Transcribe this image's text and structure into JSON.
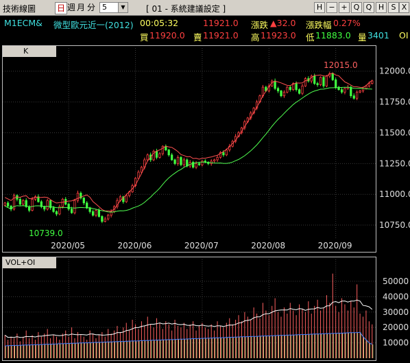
{
  "toolbar": {
    "title": "技術線圖",
    "periods": {
      "day": "日",
      "week": "週",
      "month": "月",
      "minute": "分"
    },
    "interval_value": "5",
    "setting_label": "[ 01 - 系統建議設定 ]",
    "buttons": [
      "H",
      "−",
      "+",
      "Q",
      "Q",
      "H",
      "S",
      "X"
    ],
    "colors": {
      "background": "#d4d0c8",
      "active": "#c00000"
    }
  },
  "quote": {
    "symbol": "M1ECM&",
    "name": "微型歐元近一(2012)",
    "time": "00:05:32",
    "last": "11921.0",
    "change_label": "漲跌",
    "change": "▲32.0",
    "change_pct_label": "漲跌幅",
    "change_pct": "0.27%",
    "bid_label": "買",
    "bid": "11920.0",
    "ask_label": "賣",
    "ask": "11921.0",
    "high_label": "高",
    "high": "11923.0",
    "low_label": "低",
    "low": "11883.0",
    "volume_label": "量",
    "volume": "3401",
    "oi_label": "OI",
    "colors": {
      "up": "#ff4040",
      "down": "#40ff40",
      "symbol": "#40e0e0",
      "label": "#ffff60"
    }
  },
  "panels": {
    "price": "K",
    "volume": "VOL+OI"
  },
  "chart_data": [
    {
      "type": "candlestick",
      "title": "",
      "x_ticks": [
        "2020/05",
        "2020/06",
        "2020/07",
        "2020/08",
        "2020/09"
      ],
      "y_ticks": [
        "12000.0",
        "11750.0",
        "11500.0",
        "11250.0",
        "11000.0",
        "10750.0"
      ],
      "ylim": [
        10650,
        12110
      ],
      "annotations": {
        "high": "12015.0",
        "low": "10739.0"
      },
      "ma_short_color": "#ff5050",
      "ma_long_color": "#50ff50",
      "up_color": "#ff4040",
      "down_color": "#40ff40",
      "close": [
        10930,
        10905,
        10880,
        10990,
        10960,
        10920,
        10950,
        10900,
        10870,
        10960,
        10980,
        10940,
        10900,
        10880,
        10950,
        10890,
        10860,
        10840,
        10900,
        10960,
        10920,
        10880,
        10850,
        10950,
        11010,
        10970,
        10930,
        10890,
        10860,
        10830,
        10870,
        10820,
        10780,
        10800,
        10830,
        10860,
        10900,
        10950,
        10980,
        10940,
        10990,
        11020,
        11070,
        11130,
        11180,
        11220,
        11280,
        11320,
        11280,
        11350,
        11300,
        11330,
        11390,
        11360,
        11320,
        11280,
        11250,
        11300,
        11240,
        11280,
        11230,
        11260,
        11220,
        11250,
        11240,
        11270,
        11260,
        11250,
        11270,
        11280,
        11300,
        11340,
        11320,
        11360,
        11390,
        11430,
        11470,
        11500,
        11540,
        11590,
        11620,
        11660,
        11700,
        11750,
        11800,
        11870,
        11840,
        11880,
        11920,
        11860,
        11840,
        11800,
        11830,
        11870,
        11850,
        11900,
        11850,
        11820,
        11880,
        11940,
        11920,
        11960,
        11900,
        11890,
        11950,
        11880,
        11960,
        11980,
        11930,
        11870,
        11850,
        11830,
        11860,
        11870,
        11800,
        11780,
        11830,
        11840,
        11860,
        11880,
        11900,
        11921
      ]
    },
    {
      "type": "bar",
      "title": "",
      "y_ticks": [
        "50000",
        "40000",
        "30000",
        "20000",
        "10000"
      ],
      "ylim": [
        0,
        58000
      ],
      "volume_color": "#ff6060",
      "oi_color": "#c8d080",
      "oi_line_color": "#4080ff",
      "volume_line_color": "#ffffff",
      "volume": [
        15000,
        12000,
        14000,
        13000,
        16000,
        11000,
        14000,
        18000,
        13000,
        15000,
        12000,
        17000,
        14000,
        16000,
        19000,
        13000,
        15000,
        14000,
        12000,
        16000,
        18000,
        14000,
        20000,
        13000,
        17000,
        15000,
        14000,
        12000,
        18000,
        16000,
        13000,
        15000,
        17000,
        14000,
        19000,
        16000,
        18000,
        21000,
        17000,
        20000,
        23000,
        18000,
        25000,
        22000,
        19000,
        24000,
        21000,
        27000,
        22000,
        20000,
        26000,
        23000,
        19000,
        24000,
        22000,
        18000,
        25000,
        21000,
        20000,
        23000,
        19000,
        22000,
        24000,
        18000,
        21000,
        23000,
        20000,
        19000,
        22000,
        18000,
        24000,
        21000,
        20000,
        23000,
        26000,
        22000,
        25000,
        28000,
        24000,
        30000,
        27000,
        25000,
        33000,
        29000,
        26000,
        36000,
        31000,
        28000,
        34000,
        39000,
        30000,
        27000,
        33000,
        29000,
        36000,
        31000,
        28000,
        35000,
        32000,
        30000,
        37000,
        29000,
        34000,
        38000,
        31000,
        33000,
        41000,
        36000,
        55000,
        34000,
        30000,
        39000,
        35000,
        31000,
        37000,
        33000,
        48000,
        29000,
        27000,
        31000,
        24000,
        22000
      ],
      "oi": [
        8000,
        8100,
        8200,
        8300,
        8300,
        8400,
        8500,
        8600,
        8600,
        8700,
        8800,
        8800,
        8900,
        9000,
        9100,
        9100,
        9200,
        9300,
        9400,
        9400,
        9500,
        9600,
        9700,
        9700,
        9800,
        9900,
        10000,
        10000,
        10100,
        10200,
        10300,
        10300,
        10400,
        10500,
        10600,
        10600,
        10700,
        10800,
        10900,
        10900,
        11000,
        11100,
        11200,
        11200,
        11300,
        11400,
        11500,
        11500,
        11600,
        11700,
        11800,
        11800,
        11900,
        12000,
        12100,
        12100,
        12200,
        12300,
        12400,
        12400,
        12500,
        12600,
        12700,
        12700,
        12800,
        12900,
        13000,
        13000,
        13100,
        13200,
        13300,
        13300,
        13400,
        13500,
        13600,
        13600,
        13700,
        13800,
        13900,
        13900,
        14000,
        14100,
        14200,
        14200,
        14300,
        14400,
        14500,
        14500,
        14600,
        14700,
        14800,
        14800,
        14900,
        15000,
        15100,
        15100,
        15200,
        15300,
        15400,
        15400,
        15500,
        15600,
        15700,
        15700,
        15800,
        15900,
        16000,
        16000,
        16100,
        16200,
        16300,
        16300,
        16400,
        16500,
        16600,
        16600,
        16700,
        16800,
        14000,
        12000,
        10000,
        9000
      ]
    }
  ]
}
